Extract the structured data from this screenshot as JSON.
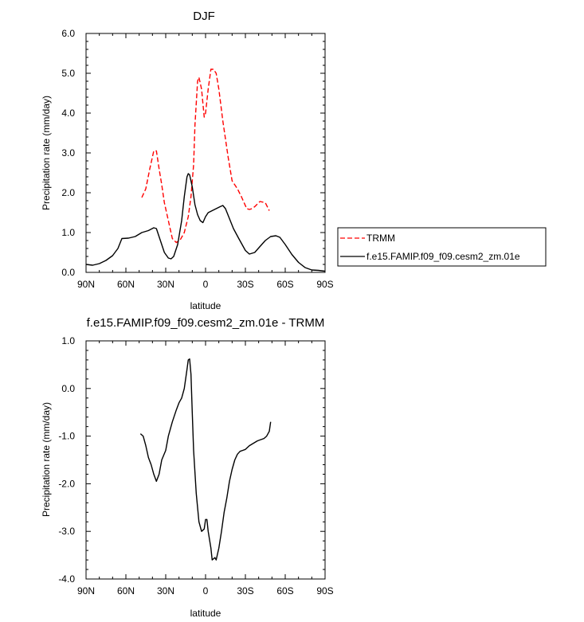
{
  "chart_data": [
    {
      "type": "line",
      "title": "DJF",
      "xlabel": "latitude",
      "ylabel": "Precipitation rate (mm/day)",
      "xlim": [
        90,
        -90
      ],
      "ylim": [
        0,
        6
      ],
      "x_ticks": [
        90,
        60,
        30,
        0,
        -30,
        -60,
        -90
      ],
      "x_tick_labels": [
        "90N",
        "60N",
        "30N",
        "0",
        "30S",
        "60S",
        "90S"
      ],
      "y_ticks": [
        0,
        1,
        2,
        3,
        4,
        5,
        6
      ],
      "y_tick_labels": [
        "0.0",
        "1.0",
        "2.0",
        "3.0",
        "4.0",
        "5.0",
        "6.0"
      ],
      "legend_position": "right-outside",
      "series": [
        {
          "name": "TRMM",
          "color": "#ff0000",
          "style": "dashed",
          "points": [
            [
              48,
              1.88
            ],
            [
              45,
              2.1
            ],
            [
              42,
              2.6
            ],
            [
              39,
              3.05
            ],
            [
              37,
              3.05
            ],
            [
              35,
              2.6
            ],
            [
              33,
              2.2
            ],
            [
              31,
              1.75
            ],
            [
              28,
              1.3
            ],
            [
              25,
              0.85
            ],
            [
              22,
              0.75
            ],
            [
              19,
              0.82
            ],
            [
              16,
              1.0
            ],
            [
              13,
              1.4
            ],
            [
              11,
              1.9
            ],
            [
              9,
              2.7
            ],
            [
              8,
              3.7
            ],
            [
              6,
              4.8
            ],
            [
              5,
              4.9
            ],
            [
              3,
              4.6
            ],
            [
              1,
              3.9
            ],
            [
              0,
              4.0
            ],
            [
              -2,
              4.6
            ],
            [
              -4,
              5.1
            ],
            [
              -6,
              5.1
            ],
            [
              -8,
              5.0
            ],
            [
              -10,
              4.6
            ],
            [
              -13,
              3.8
            ],
            [
              -17,
              2.9
            ],
            [
              -20,
              2.3
            ],
            [
              -24,
              2.1
            ],
            [
              -27,
              1.9
            ],
            [
              -31,
              1.6
            ],
            [
              -33,
              1.58
            ],
            [
              -35,
              1.6
            ],
            [
              -37,
              1.65
            ],
            [
              -41,
              1.78
            ],
            [
              -45,
              1.75
            ],
            [
              -48,
              1.55
            ]
          ]
        },
        {
          "name": "f.e15.FAMIP.f09_f09.cesm2_zm.01e",
          "color": "#000000",
          "style": "solid",
          "points": [
            [
              90,
              0.2
            ],
            [
              85,
              0.18
            ],
            [
              80,
              0.22
            ],
            [
              75,
              0.3
            ],
            [
              70,
              0.42
            ],
            [
              66,
              0.6
            ],
            [
              63,
              0.85
            ],
            [
              58,
              0.86
            ],
            [
              53,
              0.9
            ],
            [
              48,
              1.0
            ],
            [
              43,
              1.05
            ],
            [
              39,
              1.12
            ],
            [
              37,
              1.1
            ],
            [
              34,
              0.8
            ],
            [
              31,
              0.5
            ],
            [
              28,
              0.36
            ],
            [
              26,
              0.34
            ],
            [
              24,
              0.4
            ],
            [
              21,
              0.7
            ],
            [
              18,
              1.3
            ],
            [
              16,
              1.9
            ],
            [
              14,
              2.4
            ],
            [
              13,
              2.48
            ],
            [
              12,
              2.45
            ],
            [
              10,
              2.15
            ],
            [
              8,
              1.7
            ],
            [
              6,
              1.45
            ],
            [
              4,
              1.3
            ],
            [
              2,
              1.25
            ],
            [
              0,
              1.4
            ],
            [
              -2,
              1.5
            ],
            [
              -5,
              1.55
            ],
            [
              -8,
              1.6
            ],
            [
              -11,
              1.65
            ],
            [
              -13,
              1.68
            ],
            [
              -15,
              1.6
            ],
            [
              -18,
              1.35
            ],
            [
              -21,
              1.1
            ],
            [
              -25,
              0.85
            ],
            [
              -30,
              0.55
            ],
            [
              -33,
              0.46
            ],
            [
              -37,
              0.5
            ],
            [
              -41,
              0.65
            ],
            [
              -45,
              0.8
            ],
            [
              -49,
              0.9
            ],
            [
              -53,
              0.92
            ],
            [
              -56,
              0.88
            ],
            [
              -60,
              0.7
            ],
            [
              -65,
              0.45
            ],
            [
              -70,
              0.25
            ],
            [
              -75,
              0.12
            ],
            [
              -80,
              0.06
            ],
            [
              -85,
              0.05
            ],
            [
              -90,
              0.03
            ]
          ]
        }
      ]
    },
    {
      "type": "line",
      "title": "f.e15.FAMIP.f09_f09.cesm2_zm.01e - TRMM",
      "xlabel": "latitude",
      "ylabel": "Precipitation rate (mm/day)",
      "xlim": [
        90,
        -90
      ],
      "ylim": [
        -4,
        1
      ],
      "x_ticks": [
        90,
        60,
        30,
        0,
        -30,
        -60,
        -90
      ],
      "x_tick_labels": [
        "90N",
        "60N",
        "30N",
        "0",
        "30S",
        "60S",
        "90S"
      ],
      "y_ticks": [
        -4,
        -3,
        -2,
        -1,
        0,
        1
      ],
      "y_tick_labels": [
        "-4.0",
        "-3.0",
        "-2.0",
        "-1.0",
        "0.0",
        "1.0"
      ],
      "series": [
        {
          "color": "#000000",
          "style": "solid",
          "points": [
            [
              49,
              -0.95
            ],
            [
              47,
              -1.0
            ],
            [
              45,
              -1.2
            ],
            [
              43,
              -1.45
            ],
            [
              41,
              -1.6
            ],
            [
              39,
              -1.8
            ],
            [
              37,
              -1.95
            ],
            [
              35,
              -1.8
            ],
            [
              33,
              -1.5
            ],
            [
              30,
              -1.3
            ],
            [
              28,
              -1.0
            ],
            [
              25,
              -0.7
            ],
            [
              22,
              -0.45
            ],
            [
              20,
              -0.3
            ],
            [
              18,
              -0.2
            ],
            [
              16,
              0.0
            ],
            [
              14,
              0.4
            ],
            [
              13,
              0.6
            ],
            [
              12,
              0.62
            ],
            [
              11,
              0.3
            ],
            [
              10,
              -0.5
            ],
            [
              9,
              -1.3
            ],
            [
              7,
              -2.2
            ],
            [
              5,
              -2.8
            ],
            [
              3,
              -3.0
            ],
            [
              1,
              -2.95
            ],
            [
              0,
              -2.75
            ],
            [
              -1,
              -2.75
            ],
            [
              -2,
              -3.0
            ],
            [
              -4,
              -3.35
            ],
            [
              -5,
              -3.6
            ],
            [
              -7,
              -3.55
            ],
            [
              -8,
              -3.6
            ],
            [
              -10,
              -3.35
            ],
            [
              -12,
              -3.0
            ],
            [
              -14,
              -2.6
            ],
            [
              -16,
              -2.3
            ],
            [
              -18,
              -1.95
            ],
            [
              -20,
              -1.7
            ],
            [
              -22,
              -1.5
            ],
            [
              -24,
              -1.38
            ],
            [
              -26,
              -1.32
            ],
            [
              -28,
              -1.3
            ],
            [
              -30,
              -1.28
            ],
            [
              -33,
              -1.2
            ],
            [
              -36,
              -1.15
            ],
            [
              -39,
              -1.1
            ],
            [
              -41,
              -1.08
            ],
            [
              -44,
              -1.05
            ],
            [
              -46,
              -1.0
            ],
            [
              -48,
              -0.9
            ],
            [
              -49,
              -0.7
            ]
          ]
        }
      ]
    }
  ]
}
